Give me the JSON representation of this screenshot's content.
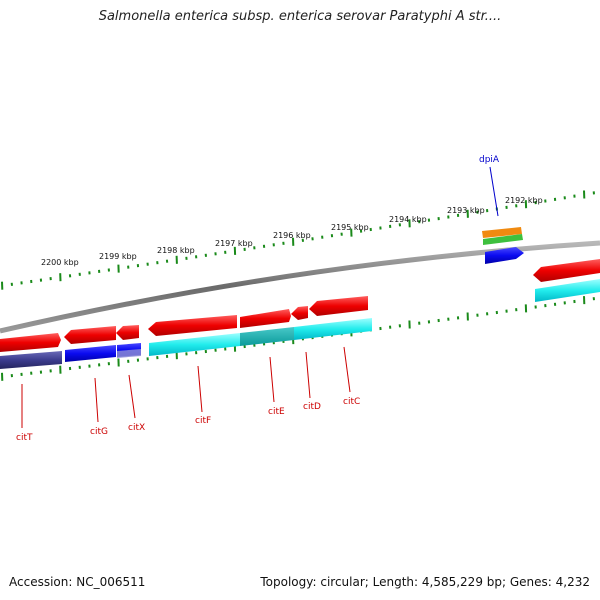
{
  "title": "Salmonella enterica subsp. enterica serovar Paratyphi A str....",
  "footer": {
    "accession": "Accession: NC_006511",
    "summary": "Topology: circular; Length: 4,585,229 bp; Genes: 4,232"
  },
  "colors": {
    "backbone": "#7a7a7a",
    "cds_forward": "#e8000a",
    "cds_reverse": "#e8000a",
    "blue_track": "#1010e0",
    "cyan_track": "#00e5e5",
    "navy_track": "#3a3a8a",
    "gc_ticks": "#1a8a1a",
    "label_red": "#cc0000",
    "label_blue": "#0000cc"
  },
  "scale_ticks": [
    "2200 kbp",
    "2199 kbp",
    "2198 kbp",
    "2197 kbp",
    "2196 kbp",
    "2195 kbp",
    "2194 kbp",
    "2193 kbp",
    "2192 kbp"
  ],
  "gene_labels": [
    {
      "name": "citT",
      "color": "red"
    },
    {
      "name": "citG",
      "color": "red"
    },
    {
      "name": "citX",
      "color": "red"
    },
    {
      "name": "citF",
      "color": "red"
    },
    {
      "name": "citE",
      "color": "red"
    },
    {
      "name": "citD",
      "color": "red"
    },
    {
      "name": "citC",
      "color": "red"
    },
    {
      "name": "dpiA",
      "color": "blue"
    }
  ]
}
